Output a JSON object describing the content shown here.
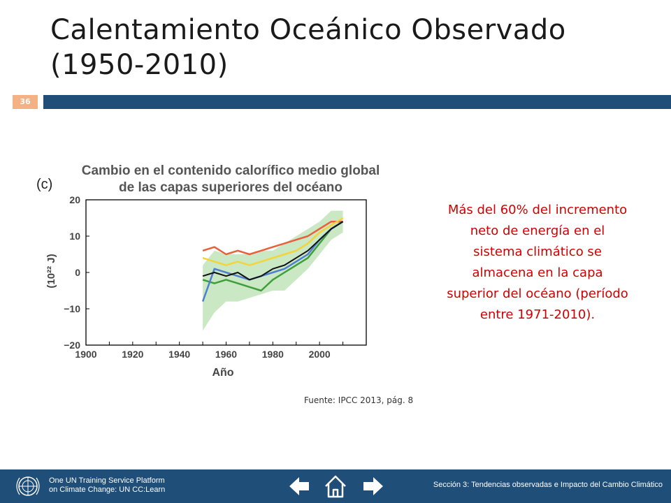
{
  "slide": {
    "title_line1": "Calentamiento Oceánico Observado",
    "title_line2": "(1950-2010)",
    "number": "36",
    "callout": "Más del 60% del incremento neto de energía en el sistema climático se almacena en la capa superior del océano (período entre 1971-2010).",
    "source": "Fuente: IPCC 2013, pág. 8"
  },
  "footer": {
    "platform_line1": "One UN Training Service Platform",
    "platform_line2": "on Climate Change: UN CC:Learn",
    "section": "Sección 3: Tendencias observadas e Impacto del Cambio Climático"
  },
  "colors": {
    "title_bar": "#1f4e79",
    "slide_number_bg": "#f4b183",
    "callout_text": "#d00000",
    "footer_bg": "#1f4e79"
  },
  "icons": [
    "un-emblem-icon",
    "arrow-left-icon",
    "home-icon",
    "arrow-right-icon"
  ],
  "chart_data": {
    "type": "line",
    "panel_label": "(c)",
    "title_line1": "Cambio en el contenido calorífico medio global",
    "title_line2": "de las capas superiores del océano",
    "xlabel": "Año",
    "ylabel": "(10²² J)",
    "xlim": [
      1900,
      2020
    ],
    "ylim": [
      -20,
      20
    ],
    "xticks": [
      1900,
      1920,
      1940,
      1960,
      1980,
      2000
    ],
    "yticks": [
      20,
      10,
      0,
      -10,
      -20
    ],
    "ytick_labels": [
      "20",
      "10",
      "0",
      "−10",
      "−20"
    ],
    "grid": false,
    "uncertainty_band": {
      "x": [
        1950,
        1955,
        1960,
        1965,
        1970,
        1975,
        1980,
        1985,
        1990,
        1995,
        2000,
        2005,
        2010
      ],
      "lower": [
        -16,
        -11,
        -8,
        -8,
        -7,
        -6,
        -5,
        -5,
        -2,
        1,
        5,
        9,
        11
      ],
      "upper": [
        2,
        6,
        5,
        5,
        5,
        6,
        6,
        8,
        10,
        12,
        14,
        17,
        17
      ]
    },
    "series": [
      {
        "color": "#e8603c",
        "x": [
          1950,
          1955,
          1960,
          1965,
          1970,
          1975,
          1980,
          1985,
          1990,
          1995,
          2000,
          2005,
          2010
        ],
        "y": [
          6,
          7,
          5,
          6,
          5,
          6,
          7,
          8,
          9,
          10,
          12,
          14,
          14
        ]
      },
      {
        "color": "#f2d43b",
        "x": [
          1950,
          1955,
          1960,
          1965,
          1970,
          1975,
          1980,
          1985,
          1990,
          1995,
          2000,
          2005,
          2010
        ],
        "y": [
          4,
          3,
          2,
          3,
          2,
          3,
          4,
          5,
          6,
          8,
          11,
          13,
          15
        ]
      },
      {
        "color": "#3f9e3c",
        "x": [
          1950,
          1955,
          1960,
          1965,
          1970,
          1975,
          1980,
          1985,
          1990,
          1995,
          2000,
          2005,
          2010
        ],
        "y": [
          -2,
          -3,
          -2,
          -3,
          -4,
          -5,
          -2,
          0,
          2,
          4,
          8,
          12,
          14
        ]
      },
      {
        "color": "#4f7fd0",
        "x": [
          1950,
          1955,
          1960,
          1965,
          1970,
          1975,
          1980,
          1985,
          1990,
          1995,
          2000,
          2005,
          2010
        ],
        "y": [
          -8,
          1,
          0,
          -1,
          -2,
          -1,
          0,
          1,
          3,
          5,
          9,
          12,
          14
        ]
      },
      {
        "color": "#111111",
        "x": [
          1950,
          1955,
          1960,
          1965,
          1970,
          1975,
          1980,
          1985,
          1990,
          1995,
          2000,
          2005,
          2010
        ],
        "y": [
          -1,
          0,
          -1,
          0,
          -2,
          -1,
          1,
          2,
          4,
          6,
          9,
          12,
          14
        ]
      }
    ]
  }
}
